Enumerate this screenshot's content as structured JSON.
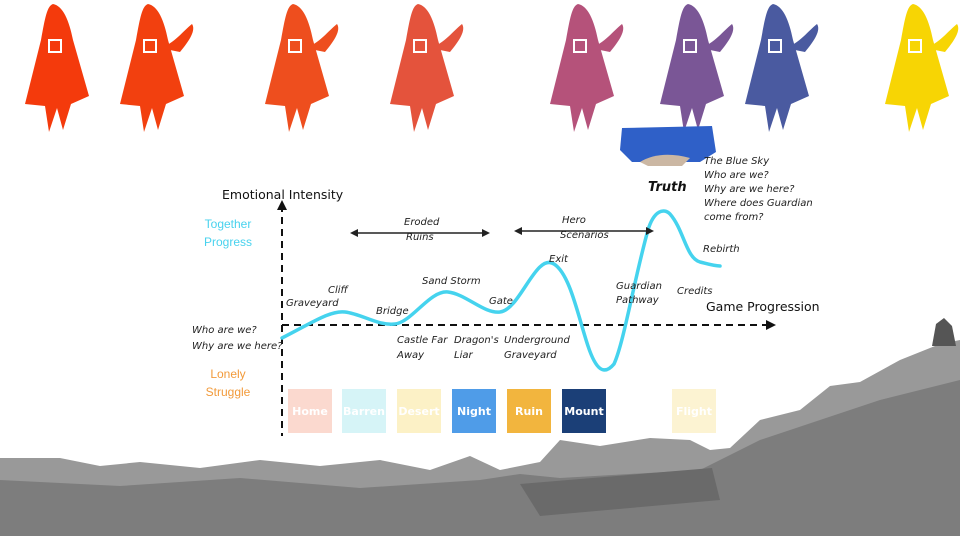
{
  "axes": {
    "y_title": "Emotional Intensity",
    "x_title": "Game Progression",
    "y_top": [
      "Together",
      "Progress"
    ],
    "y_bottom": [
      "Lonely",
      "Struggle"
    ]
  },
  "colors": {
    "curve": "#45d3ee",
    "together": "#48d2ee",
    "lonely": "#f29a3a",
    "terrain": "#8c8c8c"
  },
  "intro_lines": [
    "Who are we?",
    "Why are we here?"
  ],
  "truth": "Truth",
  "blue_sky_lines": [
    "The Blue Sky",
    "Who are we?",
    "Why are we here?",
    "Where does Guardian",
    "come from?"
  ],
  "points": {
    "graveyard": "Graveyard",
    "cliff": "Cliff",
    "bridge": "Bridge",
    "castle": [
      "Castle Far",
      "Away"
    ],
    "sand_storm": "Sand Storm",
    "dragons_liar": [
      "Dragon's",
      "Liar"
    ],
    "gate": "Gate",
    "underground": [
      "Underground",
      "Graveyard"
    ],
    "exit": "Exit",
    "guardian": [
      "Guardian",
      "Pathway"
    ],
    "credits": "Credits",
    "rebirth": "Rebirth"
  },
  "arrows": {
    "eroded": [
      "Eroded",
      "Ruins"
    ],
    "hero": [
      "Hero",
      "Scenarios"
    ]
  },
  "stages": [
    {
      "label": "Home",
      "color": "#fbd9cf"
    },
    {
      "label": "Barren",
      "color": "#d6f4f7"
    },
    {
      "label": "Desert",
      "color": "#fcf1c6"
    },
    {
      "label": "Night",
      "color": "#4f9ce8"
    },
    {
      "label": "Ruin",
      "color": "#f2b53e"
    },
    {
      "label": "Mount",
      "color": "#1b3f77"
    },
    {
      "label": "",
      "color": "#ffffff"
    },
    {
      "label": "Flight",
      "color": "#fcf3d2"
    }
  ],
  "figure_colors": [
    "#f43a0c",
    "#f2400f",
    "#ee4e1e",
    "#e4533c",
    "#b5527a",
    "#7a5696",
    "#4a5aa0",
    "#f7d504"
  ]
}
